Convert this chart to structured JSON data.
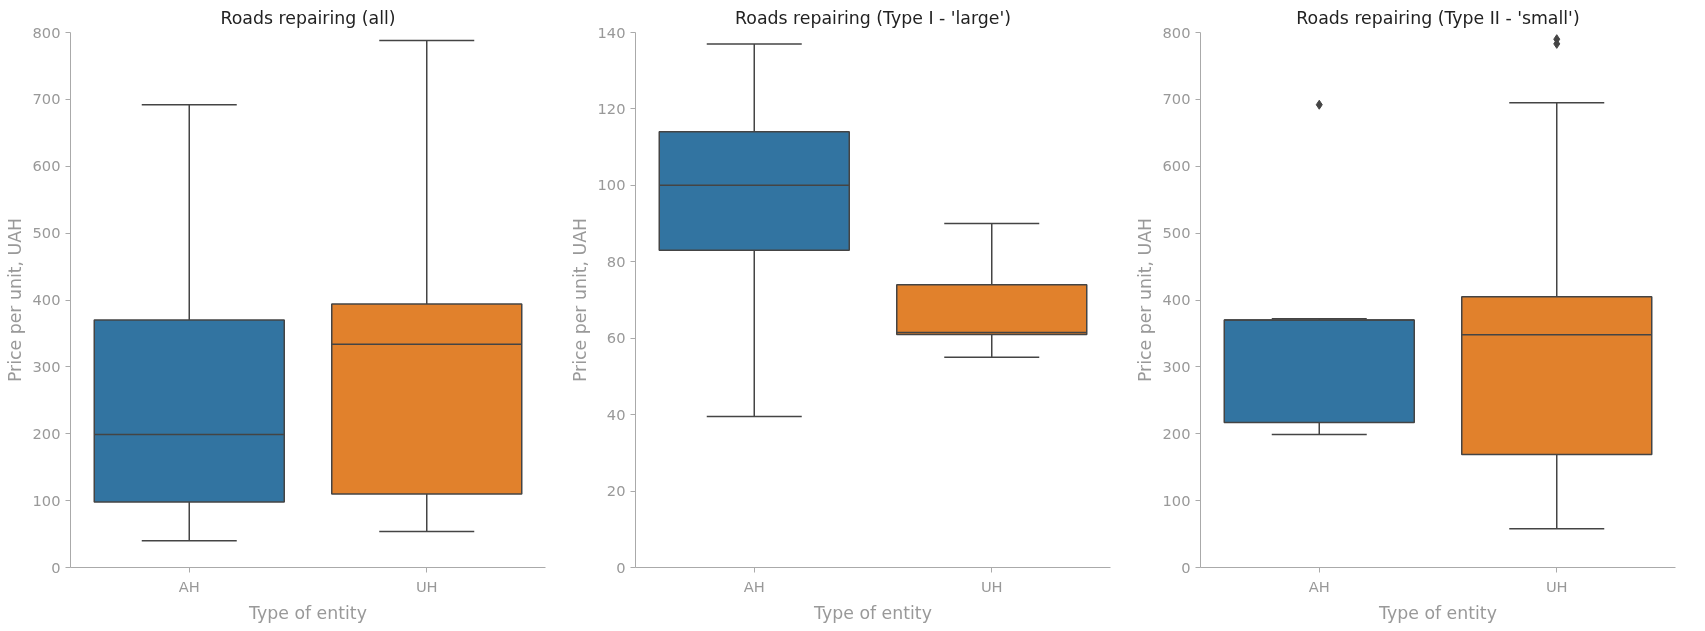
{
  "chart_data": [
    {
      "type": "box",
      "title": "Roads repairing (all)",
      "xlabel": "Type of entity",
      "ylabel": "Price per unit, UAH",
      "categories": [
        "AH",
        "UH"
      ],
      "colors": [
        "#3274a1",
        "#e1812c"
      ],
      "ylim": [
        0,
        800
      ],
      "yticks": [
        0,
        100,
        200,
        300,
        400,
        500,
        600,
        700,
        800
      ],
      "grid": false,
      "boxes": [
        {
          "low": 40,
          "q1": 98,
          "median": 199,
          "q3": 370,
          "high": 692
        },
        {
          "low": 54,
          "q1": 110,
          "median": 334,
          "q3": 394,
          "high": 788
        }
      ]
    },
    {
      "type": "box",
      "title": "Roads repairing (Type I - 'large')",
      "xlabel": "Type of entity",
      "ylabel": "Price per unit, UAH",
      "categories": [
        "AH",
        "UH"
      ],
      "colors": [
        "#3274a1",
        "#e1812c"
      ],
      "ylim": [
        0,
        140
      ],
      "yticks": [
        0,
        20,
        40,
        60,
        80,
        100,
        120,
        140
      ],
      "grid": false,
      "boxes": [
        {
          "low": 39.5,
          "q1": 83,
          "median": 100,
          "q3": 114,
          "high": 137
        },
        {
          "low": 55,
          "q1": 61,
          "median": 61.5,
          "q3": 74,
          "high": 90
        }
      ]
    },
    {
      "type": "box",
      "title": "Roads repairing (Type II - 'small')",
      "xlabel": "Type of entity",
      "ylabel": "Price per unit, UAH",
      "categories": [
        "AH",
        "UH"
      ],
      "colors": [
        "#3274a1",
        "#e1812c"
      ],
      "ylim": [
        0,
        800
      ],
      "yticks": [
        0,
        100,
        200,
        300,
        400,
        500,
        600,
        700,
        800
      ],
      "grid": false,
      "boxes": [
        {
          "low": 199,
          "q1": 217,
          "median": 370,
          "q3": 370,
          "high": 372,
          "outliers": [
            692
          ]
        },
        {
          "low": 58,
          "q1": 169,
          "median": 348,
          "q3": 405,
          "high": 695,
          "outliers": [
            783,
            790
          ]
        }
      ]
    }
  ]
}
